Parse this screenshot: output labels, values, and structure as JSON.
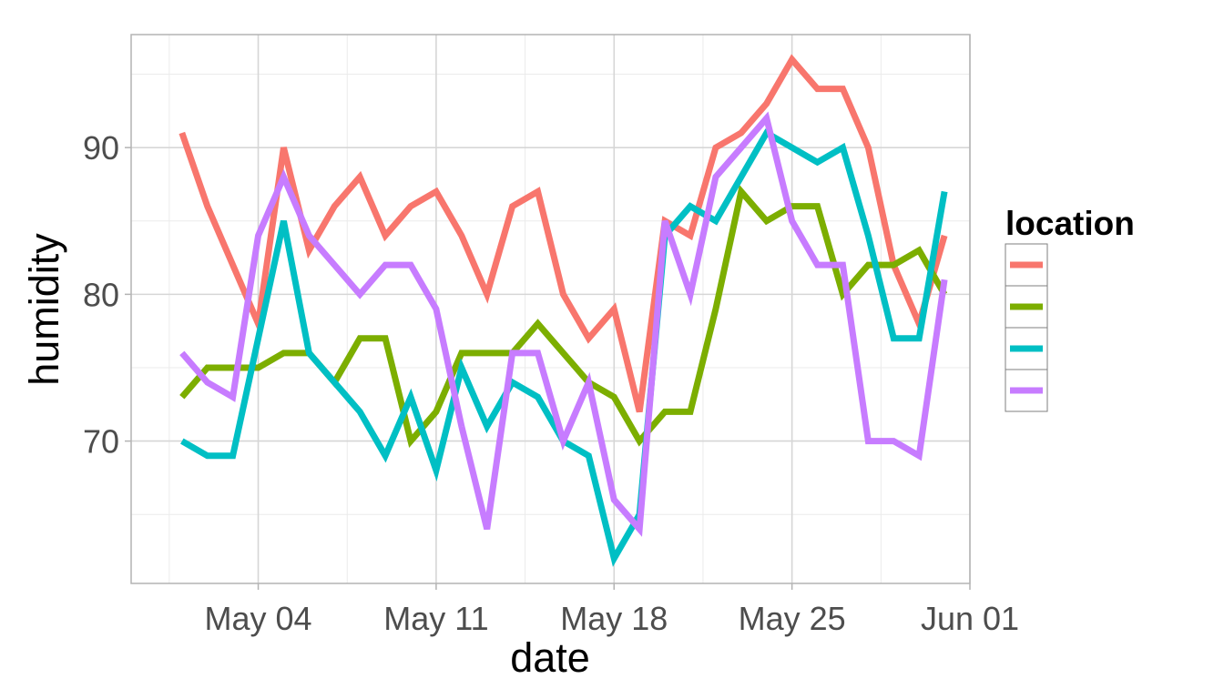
{
  "chart_data": {
    "type": "line",
    "xlabel": "date",
    "ylabel": "humidity",
    "x_start": "2020-05-01",
    "x_end": "2020-05-31",
    "xlim": [
      "2020-04-29",
      "2020-06-01"
    ],
    "ylim": [
      60.3,
      97.7
    ],
    "x_ticks": [
      {
        "date": "2020-05-04",
        "label": "May 04"
      },
      {
        "date": "2020-05-11",
        "label": "May 11"
      },
      {
        "date": "2020-05-18",
        "label": "May 18"
      },
      {
        "date": "2020-05-25",
        "label": "May 25"
      },
      {
        "date": "2020-06-01",
        "label": "Jun 01"
      }
    ],
    "y_ticks": [
      {
        "value": 70,
        "label": "70"
      },
      {
        "value": 80,
        "label": "80"
      },
      {
        "value": 90,
        "label": "90"
      }
    ],
    "grid": true,
    "legend": {
      "title": "location",
      "placement": "right"
    },
    "series": [
      {
        "color": "#F8766D",
        "values": [
          91,
          86,
          82,
          78,
          90,
          83,
          86,
          88,
          84,
          86,
          87,
          84,
          80,
          86,
          87,
          80,
          77,
          79,
          72,
          85,
          84,
          90,
          91,
          93,
          96,
          94,
          94,
          90,
          82,
          78,
          84
        ]
      },
      {
        "color": "#7CAE00",
        "values": [
          73,
          75,
          75,
          75,
          76,
          76,
          74,
          77,
          77,
          70,
          72,
          76,
          76,
          76,
          78,
          76,
          74,
          73,
          70,
          72,
          72,
          79,
          87,
          85,
          86,
          86,
          80,
          82,
          82,
          83,
          80
        ]
      },
      {
        "color": "#00BFC4",
        "values": [
          70,
          69,
          69,
          77,
          85,
          76,
          74,
          72,
          69,
          73,
          68,
          75,
          71,
          74,
          73,
          70,
          69,
          62,
          65,
          84,
          86,
          85,
          88,
          91,
          90,
          89,
          90,
          84,
          77,
          77,
          87
        ]
      },
      {
        "color": "#C77CFF",
        "values": [
          76,
          74,
          73,
          84,
          88,
          84,
          82,
          80,
          82,
          82,
          79,
          71,
          64,
          76,
          76,
          70,
          74,
          66,
          64,
          85,
          80,
          88,
          90,
          92,
          85,
          82,
          82,
          70,
          70,
          69,
          81
        ]
      }
    ]
  }
}
